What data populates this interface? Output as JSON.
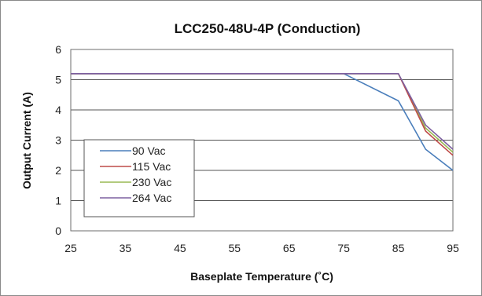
{
  "chart_data": {
    "type": "line",
    "title": "LCC250-48U-4P (Conduction)",
    "xlabel": "Baseplate Temperature (˚C)",
    "ylabel": "Output Current (A)",
    "xlim": [
      25,
      95
    ],
    "ylim": [
      0,
      6
    ],
    "xticks": [
      25,
      35,
      45,
      55,
      65,
      75,
      85,
      95
    ],
    "yticks": [
      0,
      1,
      2,
      3,
      4,
      5,
      6
    ],
    "grid": "horizontal",
    "legend_position": "lower-left",
    "series": [
      {
        "name": "90 Vac",
        "color": "#4a7ebb",
        "x": [
          25,
          75,
          85,
          90,
          95
        ],
        "y": [
          5.2,
          5.2,
          4.3,
          2.7,
          2.0
        ]
      },
      {
        "name": "115 Vac",
        "color": "#be4b48",
        "x": [
          25,
          85,
          90,
          95
        ],
        "y": [
          5.2,
          5.2,
          3.3,
          2.5
        ]
      },
      {
        "name": "230 Vac",
        "color": "#98b954",
        "x": [
          25,
          85,
          90,
          95
        ],
        "y": [
          5.2,
          5.2,
          3.4,
          2.6
        ]
      },
      {
        "name": "264 Vac",
        "color": "#7d60a0",
        "x": [
          25,
          85,
          90,
          95
        ],
        "y": [
          5.2,
          5.2,
          3.5,
          2.7
        ]
      }
    ]
  }
}
